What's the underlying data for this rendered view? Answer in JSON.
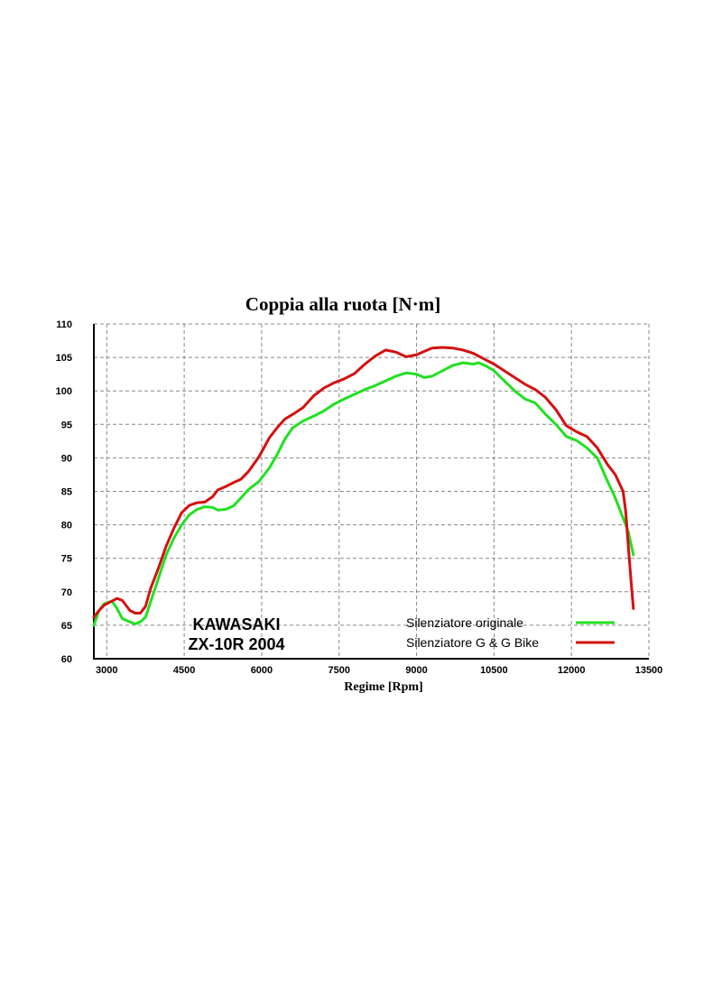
{
  "chart_data": {
    "type": "line",
    "title": "Coppia alla ruota [N·m]",
    "xlabel": "Regime [Rpm]",
    "ylabel": "",
    "xlim": [
      2750,
      13500
    ],
    "ylim": [
      60,
      110
    ],
    "xticks": [
      3000,
      4500,
      6000,
      7500,
      9000,
      10500,
      12000,
      13500
    ],
    "yticks": [
      60,
      65,
      70,
      75,
      80,
      85,
      90,
      95,
      100,
      105,
      110
    ],
    "grid": true,
    "legend_position": "bottom-right",
    "annotation": [
      "KAWASAKI",
      "ZX-10R 2004"
    ],
    "series": [
      {
        "name": "Silenziatore originale",
        "color": "#22e022",
        "points": [
          [
            2750,
            65.0
          ],
          [
            2850,
            67.2
          ],
          [
            2950,
            68.2
          ],
          [
            3100,
            68.6
          ],
          [
            3200,
            67.5
          ],
          [
            3300,
            66.0
          ],
          [
            3450,
            65.5
          ],
          [
            3550,
            65.2
          ],
          [
            3650,
            65.5
          ],
          [
            3750,
            66.2
          ],
          [
            3850,
            68.5
          ],
          [
            4000,
            72.0
          ],
          [
            4150,
            75.5
          ],
          [
            4300,
            78.0
          ],
          [
            4450,
            80.0
          ],
          [
            4600,
            81.5
          ],
          [
            4750,
            82.3
          ],
          [
            4900,
            82.7
          ],
          [
            5050,
            82.6
          ],
          [
            5150,
            82.2
          ],
          [
            5300,
            82.3
          ],
          [
            5450,
            82.8
          ],
          [
            5600,
            84.0
          ],
          [
            5750,
            85.3
          ],
          [
            5950,
            86.5
          ],
          [
            6150,
            88.5
          ],
          [
            6300,
            90.5
          ],
          [
            6450,
            92.8
          ],
          [
            6600,
            94.5
          ],
          [
            6800,
            95.5
          ],
          [
            7000,
            96.2
          ],
          [
            7200,
            97.0
          ],
          [
            7400,
            98.0
          ],
          [
            7600,
            98.8
          ],
          [
            7800,
            99.5
          ],
          [
            8000,
            100.2
          ],
          [
            8200,
            100.8
          ],
          [
            8400,
            101.5
          ],
          [
            8600,
            102.2
          ],
          [
            8800,
            102.7
          ],
          [
            9000,
            102.5
          ],
          [
            9150,
            102.0
          ],
          [
            9300,
            102.2
          ],
          [
            9500,
            103.0
          ],
          [
            9700,
            103.8
          ],
          [
            9900,
            104.2
          ],
          [
            10100,
            104.0
          ],
          [
            10200,
            104.2
          ],
          [
            10350,
            103.7
          ],
          [
            10500,
            103.0
          ],
          [
            10700,
            101.5
          ],
          [
            10900,
            100.0
          ],
          [
            11100,
            98.8
          ],
          [
            11300,
            98.2
          ],
          [
            11500,
            96.5
          ],
          [
            11700,
            95.0
          ],
          [
            11900,
            93.2
          ],
          [
            12100,
            92.6
          ],
          [
            12300,
            91.5
          ],
          [
            12500,
            90.0
          ],
          [
            12700,
            86.5
          ],
          [
            12850,
            84.0
          ],
          [
            13000,
            81.0
          ],
          [
            13100,
            79.0
          ],
          [
            13200,
            75.5
          ]
        ]
      },
      {
        "name": "Silenziatore G & G Bike",
        "color": "#d41010",
        "points": [
          [
            2750,
            66.2
          ],
          [
            2850,
            67.2
          ],
          [
            2950,
            68.0
          ],
          [
            3100,
            68.6
          ],
          [
            3200,
            69.0
          ],
          [
            3300,
            68.7
          ],
          [
            3450,
            67.2
          ],
          [
            3550,
            66.8
          ],
          [
            3650,
            66.8
          ],
          [
            3750,
            67.8
          ],
          [
            3850,
            70.5
          ],
          [
            4000,
            73.5
          ],
          [
            4150,
            76.8
          ],
          [
            4300,
            79.5
          ],
          [
            4450,
            81.8
          ],
          [
            4600,
            82.9
          ],
          [
            4750,
            83.3
          ],
          [
            4900,
            83.4
          ],
          [
            5050,
            84.2
          ],
          [
            5150,
            85.2
          ],
          [
            5300,
            85.7
          ],
          [
            5450,
            86.3
          ],
          [
            5600,
            86.8
          ],
          [
            5750,
            88.0
          ],
          [
            5950,
            90.2
          ],
          [
            6150,
            93.0
          ],
          [
            6300,
            94.5
          ],
          [
            6450,
            95.8
          ],
          [
            6600,
            96.5
          ],
          [
            6800,
            97.5
          ],
          [
            7000,
            99.2
          ],
          [
            7200,
            100.4
          ],
          [
            7400,
            101.2
          ],
          [
            7600,
            101.8
          ],
          [
            7800,
            102.6
          ],
          [
            8000,
            104.0
          ],
          [
            8200,
            105.2
          ],
          [
            8400,
            106.1
          ],
          [
            8600,
            105.8
          ],
          [
            8800,
            105.1
          ],
          [
            9000,
            105.4
          ],
          [
            9150,
            105.9
          ],
          [
            9300,
            106.4
          ],
          [
            9500,
            106.5
          ],
          [
            9700,
            106.4
          ],
          [
            9900,
            106.1
          ],
          [
            10100,
            105.6
          ],
          [
            10200,
            105.2
          ],
          [
            10350,
            104.6
          ],
          [
            10500,
            104.0
          ],
          [
            10700,
            103.0
          ],
          [
            10900,
            102.0
          ],
          [
            11100,
            101.0
          ],
          [
            11300,
            100.2
          ],
          [
            11500,
            99.0
          ],
          [
            11700,
            97.2
          ],
          [
            11900,
            94.8
          ],
          [
            12100,
            93.9
          ],
          [
            12300,
            93.2
          ],
          [
            12500,
            91.5
          ],
          [
            12700,
            89.0
          ],
          [
            12850,
            87.5
          ],
          [
            13000,
            85.0
          ],
          [
            13050,
            82.0
          ],
          [
            13100,
            77.0
          ],
          [
            13150,
            72.0
          ],
          [
            13200,
            67.5
          ]
        ]
      }
    ]
  }
}
